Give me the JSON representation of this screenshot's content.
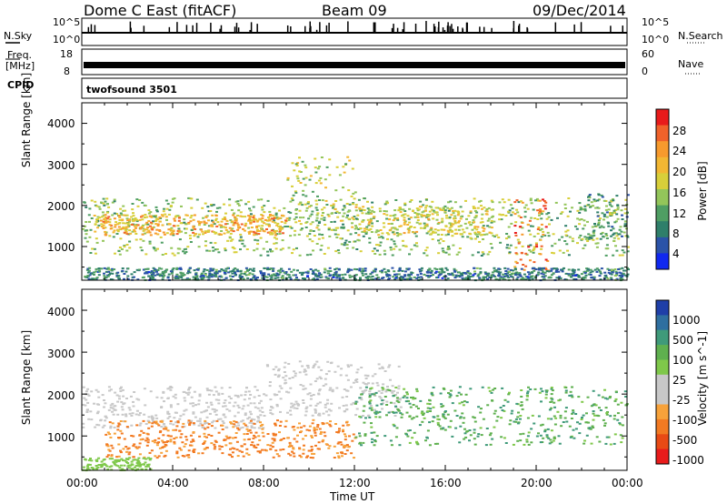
{
  "header": {
    "title": "Dome C East (fitACF)",
    "beam": "Beam 09",
    "date": "09/Dec/2014"
  },
  "top_panels": {
    "nsky_label": "N.Sky",
    "nsearch_label": "N.Search",
    "noise_ticks": [
      "10^5",
      "10^0"
    ],
    "freq_label_1": "Freq.",
    "freq_label_2": "[MHz]",
    "freq_ticks": [
      "18",
      "8"
    ],
    "nave_label": "Nave",
    "nave_ticks": [
      "60",
      "0"
    ],
    "cpid_label": "CPID",
    "cpid_value": "twofsound 3501"
  },
  "axes": {
    "ylabel": "Slant Range [km]",
    "xlabel": "Time UT",
    "yticks": [
      "4000",
      "3000",
      "2000",
      "1000"
    ],
    "xticks": [
      "00:00",
      "04:00",
      "08:00",
      "12:00",
      "16:00",
      "20:00",
      "00:00"
    ]
  },
  "power_scale": {
    "label": "Power [dB]",
    "ticks": [
      "28",
      "24",
      "20",
      "16",
      "12",
      "8",
      "4"
    ],
    "colors": [
      "#e81b1b",
      "#f0622a",
      "#f79a2d",
      "#f2b733",
      "#d8cf3a",
      "#93c55a",
      "#4f9e63",
      "#2f7f6a",
      "#2b53a8",
      "#1028f0"
    ]
  },
  "velocity_scale": {
    "label": "Velocity [m s^-1]",
    "ticks": [
      "1000",
      "500",
      "100",
      "25",
      "-25",
      "-100",
      "-500",
      "-1000"
    ],
    "colors": [
      "#1f3fa8",
      "#2f6fa0",
      "#3f9a7a",
      "#5fb04f",
      "#7fc84a",
      "#c8c8c8",
      "#c8c8c8",
      "#f7a23a",
      "#f27a22",
      "#e84a15",
      "#e81b1b"
    ]
  },
  "chart_data": [
    {
      "type": "heatmap",
      "title": "Power",
      "quantity": "Power [dB]",
      "x_range": [
        "00:00",
        "00:00"
      ],
      "ylim": [
        180,
        4500
      ],
      "color_range": [
        0,
        32
      ],
      "regions": [
        {
          "t_start": 0.0,
          "t_end": 24.0,
          "range_min": 800,
          "range_max": 2200,
          "value": 14
        },
        {
          "t_start": 0.5,
          "t_end": 9.0,
          "range_min": 1300,
          "range_max": 1800,
          "value": 22
        },
        {
          "t_start": 9.0,
          "t_end": 12.0,
          "range_min": 1400,
          "range_max": 3200,
          "value": 16
        },
        {
          "t_start": 12.0,
          "t_end": 18.0,
          "range_min": 1300,
          "range_max": 2000,
          "value": 18
        },
        {
          "t_start": 19.0,
          "t_end": 20.5,
          "range_min": 400,
          "range_max": 2200,
          "value": 26
        },
        {
          "t_start": 22.0,
          "t_end": 24.0,
          "range_min": 1200,
          "range_max": 2300,
          "value": 10
        },
        {
          "t_start": 0.0,
          "t_end": 24.0,
          "range_min": 200,
          "range_max": 500,
          "value": 8
        }
      ]
    },
    {
      "type": "heatmap",
      "title": "Velocity",
      "quantity": "Velocity [m s^-1]",
      "x_range": [
        "00:00",
        "00:00"
      ],
      "ylim": [
        180,
        4500
      ],
      "regions": [
        {
          "t_start": 0.0,
          "t_end": 8.0,
          "range_min": 1200,
          "range_max": 2200,
          "value": 0
        },
        {
          "t_start": 8.0,
          "t_end": 14.0,
          "range_min": 1500,
          "range_max": 2800,
          "value": 0
        },
        {
          "t_start": 1.0,
          "t_end": 12.0,
          "range_min": 500,
          "range_max": 1400,
          "value": -300
        },
        {
          "t_start": 12.0,
          "t_end": 24.0,
          "range_min": 800,
          "range_max": 2200,
          "value": 200
        },
        {
          "t_start": 0.0,
          "t_end": 3.0,
          "range_min": 200,
          "range_max": 500,
          "value": 60
        }
      ]
    }
  ]
}
